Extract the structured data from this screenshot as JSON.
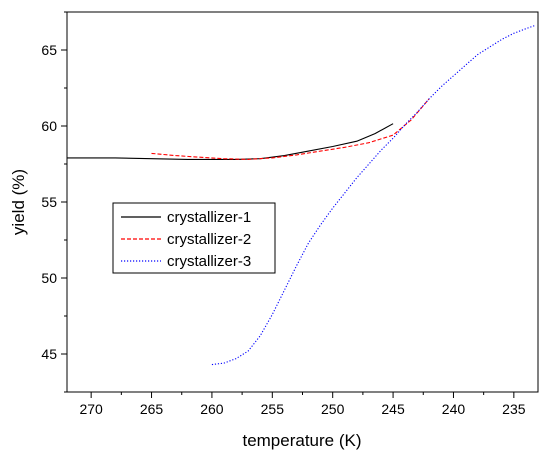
{
  "chart_data": {
    "type": "line",
    "title": "",
    "xlabel": "temperature (K)",
    "ylabel": "yield (%)",
    "xlim": [
      272,
      233
    ],
    "ylim": [
      42.5,
      67.5
    ],
    "x_reversed": true,
    "x_ticks": [
      270,
      265,
      260,
      255,
      250,
      245,
      240,
      235
    ],
    "y_ticks": [
      45,
      50,
      55,
      60,
      65
    ],
    "grid": false,
    "legend_position": "left-middle",
    "series": [
      {
        "name": "crystallizer-1",
        "color": "#000000",
        "style": "solid",
        "x": [
          272,
          268,
          265,
          262,
          260,
          258,
          256,
          254,
          252,
          250,
          248,
          246.5,
          245
        ],
        "y": [
          57.9,
          57.9,
          57.85,
          57.8,
          57.8,
          57.8,
          57.85,
          58.05,
          58.35,
          58.65,
          59.0,
          59.5,
          60.15
        ]
      },
      {
        "name": "crystallizer-2",
        "color": "#ff0000",
        "style": "dashed",
        "x": [
          265,
          263,
          261,
          259,
          257,
          255,
          253,
          251,
          249,
          247,
          245,
          243.5,
          242
        ],
        "y": [
          58.2,
          58.05,
          57.95,
          57.85,
          57.8,
          57.9,
          58.1,
          58.35,
          58.6,
          58.9,
          59.4,
          60.4,
          61.8
        ]
      },
      {
        "name": "crystallizer-3",
        "color": "#0000ff",
        "style": "dotted",
        "x": [
          260,
          259,
          258,
          257,
          256,
          255,
          254,
          253,
          252,
          251,
          250,
          249,
          248,
          247,
          246,
          245,
          244,
          243,
          242,
          241,
          240,
          239,
          238,
          237,
          236,
          235,
          234,
          233.3
        ],
        "y": [
          44.3,
          44.4,
          44.7,
          45.2,
          46.2,
          47.6,
          49.2,
          50.8,
          52.3,
          53.5,
          54.6,
          55.6,
          56.6,
          57.5,
          58.4,
          59.2,
          60.1,
          60.9,
          61.8,
          62.6,
          63.3,
          64.0,
          64.7,
          65.2,
          65.7,
          66.1,
          66.4,
          66.6
        ]
      }
    ]
  }
}
